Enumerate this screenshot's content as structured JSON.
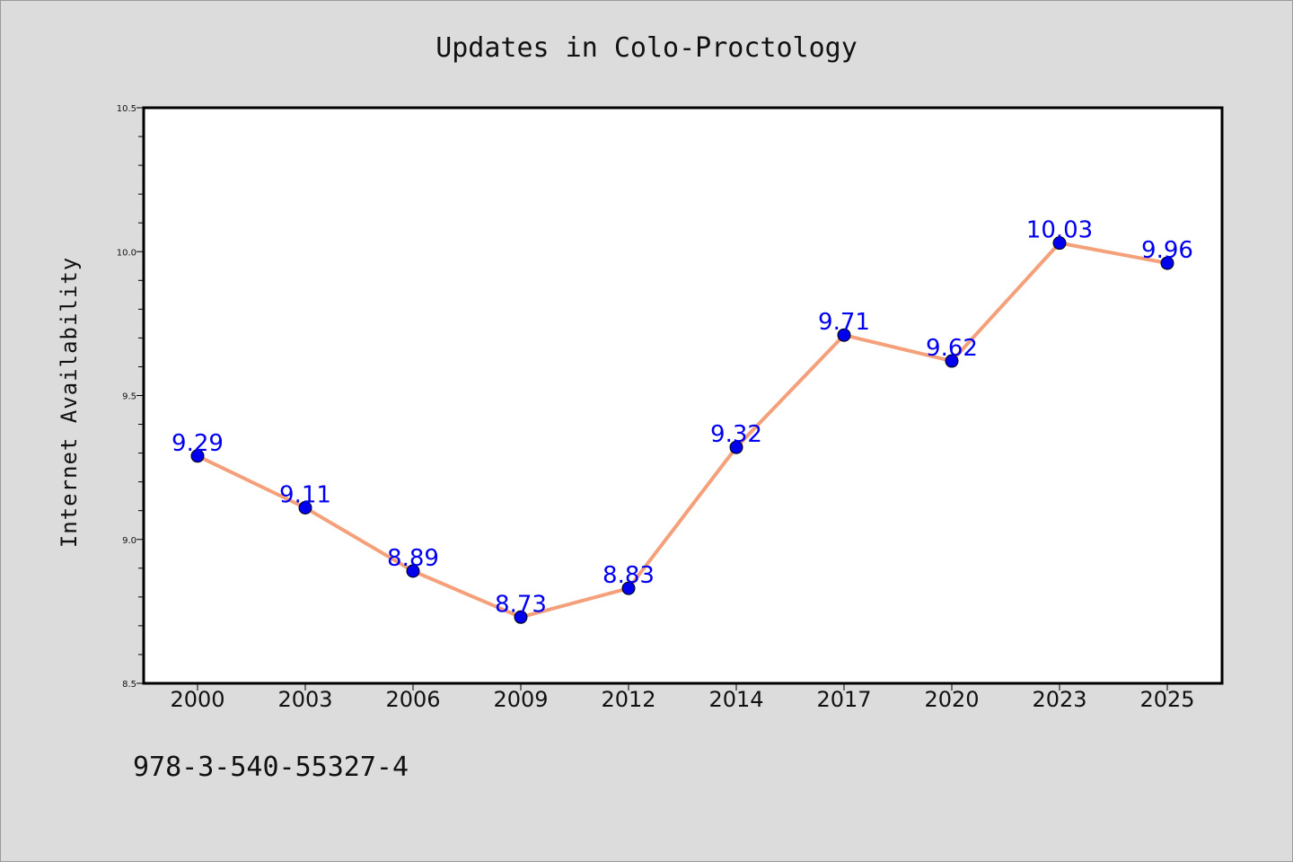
{
  "chart_data": {
    "type": "line",
    "title": "Updates in Colo-Proctology",
    "xlabel": "",
    "ylabel": "Internet Availability",
    "categories": [
      "2000",
      "2003",
      "2006",
      "2009",
      "2012",
      "2014",
      "2017",
      "2020",
      "2023",
      "2025"
    ],
    "series": [
      {
        "values": [
          9.29,
          9.11,
          8.89,
          8.73,
          8.83,
          9.32,
          9.71,
          9.62,
          10.03,
          9.96
        ],
        "data_labels": [
          "9.29",
          "9.11",
          "8.89",
          "8.73",
          "8.83",
          "9.32",
          "9.71",
          "9.62",
          "10.03",
          "9.96"
        ],
        "line_color": "#f4a07a",
        "marker_color": "#0000ee"
      }
    ],
    "ylim": [
      8.5,
      10.5
    ],
    "yticks": [
      "8.5",
      "9.0",
      "9.5",
      "10.0",
      "10.5"
    ],
    "grid": false,
    "legend": "none"
  },
  "footer_text": "978-3-540-55327-4",
  "colors": {
    "background": "#dcdcdc",
    "plot_area": "#ffffff",
    "label_text": "#0000ee"
  }
}
